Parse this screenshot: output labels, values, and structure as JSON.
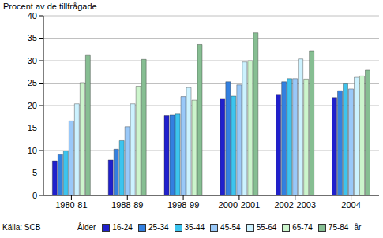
{
  "chart_data": {
    "type": "bar",
    "y_label": "Procent av de tillfrågade",
    "source": "Källa: SCB",
    "legend_title": "Ålder",
    "legend_unit": "år",
    "categories": [
      "1980-81",
      "1988-89",
      "1998-99",
      "2000-2001",
      "2002-2003",
      "2004"
    ],
    "series": [
      {
        "name": "16-24",
        "color": "#2020cc",
        "values": [
          7.7,
          7.9,
          17.8,
          21.6,
          22.5,
          21.8
        ]
      },
      {
        "name": "25-34",
        "color": "#3380e0",
        "values": [
          9.1,
          10.3,
          17.9,
          25.3,
          25.3,
          23.3
        ]
      },
      {
        "name": "35-44",
        "color": "#3cc4ee",
        "values": [
          9.9,
          12.2,
          18.1,
          22.1,
          26.0,
          25.0
        ]
      },
      {
        "name": "45-54",
        "color": "#99c8f8",
        "values": [
          16.6,
          15.3,
          22.0,
          24.6,
          26.0,
          23.7
        ]
      },
      {
        "name": "55-64",
        "color": "#ccf2ff",
        "values": [
          20.4,
          20.4,
          24.0,
          29.7,
          30.4,
          26.3
        ]
      },
      {
        "name": "65-74",
        "color": "#ccf5cc",
        "values": [
          25.1,
          24.3,
          21.2,
          30.0,
          25.9,
          26.6
        ]
      },
      {
        "name": "75-84",
        "color": "#86be92",
        "values": [
          31.2,
          30.3,
          33.6,
          36.2,
          32.1,
          27.9
        ]
      }
    ],
    "ylim": [
      0,
      40
    ],
    "yticks": [
      0,
      5,
      10,
      15,
      20,
      25,
      30,
      35,
      40
    ],
    "grid": true,
    "legend": "bottom"
  }
}
